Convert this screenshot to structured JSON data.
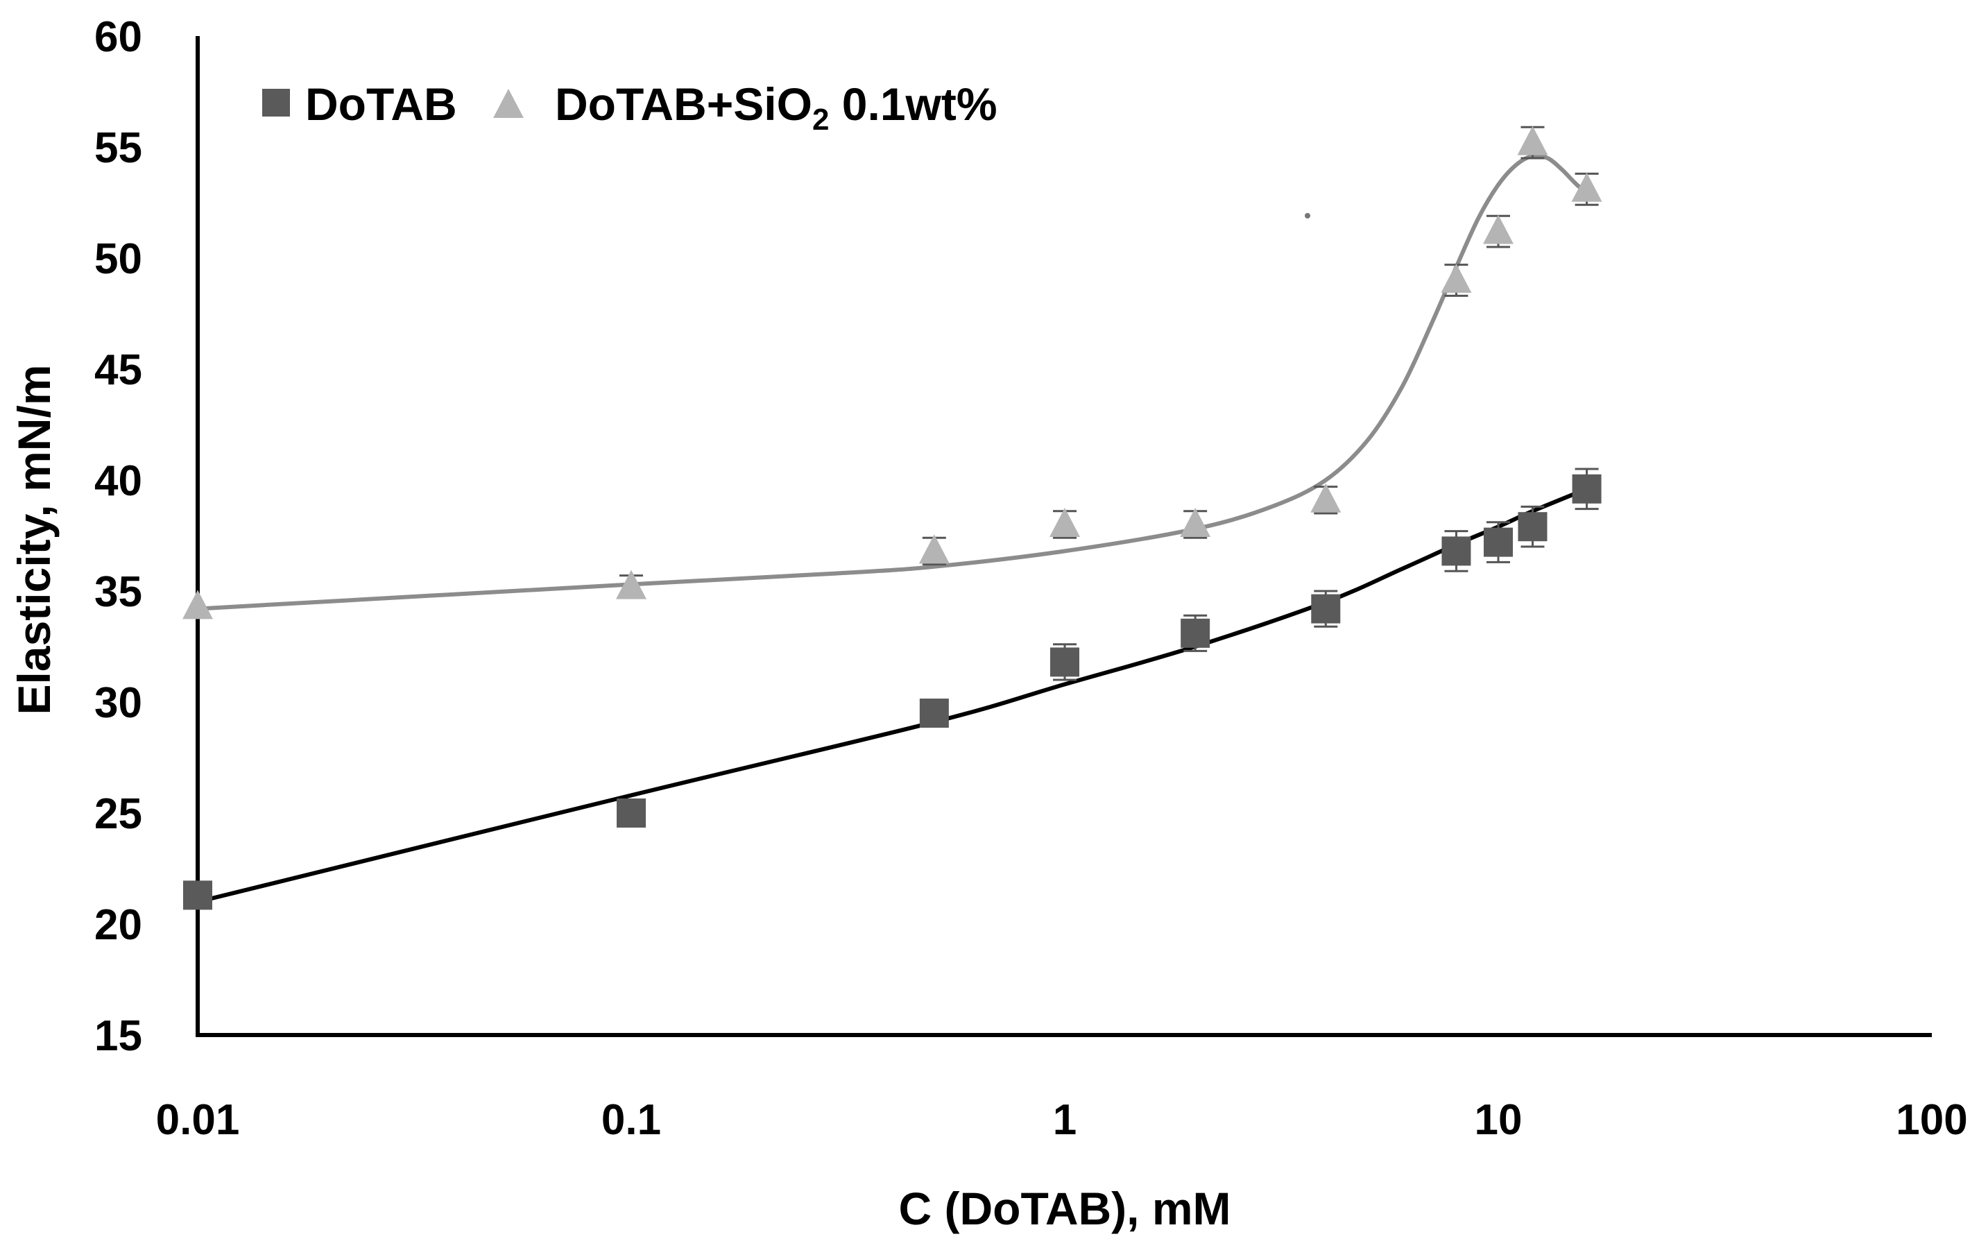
{
  "chart_data": {
    "type": "scatter",
    "title": "",
    "xlabel": "C (DoTAB), mM",
    "ylabel": "Elasticity, mN/m",
    "xscale": "log",
    "xlim": [
      0.01,
      100
    ],
    "ylim": [
      15,
      60
    ],
    "xticks": [
      0.01,
      0.1,
      1,
      10,
      100
    ],
    "xtick_labels": [
      "0.01",
      "0.1",
      "1",
      "10",
      "100"
    ],
    "yticks": [
      15,
      20,
      25,
      30,
      35,
      40,
      45,
      50,
      55,
      60
    ],
    "ytick_labels": [
      "15",
      "20",
      "25",
      "30",
      "35",
      "40",
      "45",
      "50",
      "55",
      "60"
    ],
    "grid": false,
    "legend_position": "top-left",
    "series": [
      {
        "name": "DoTAB",
        "marker": "square",
        "color": "#5a5a5a",
        "trend_color": "#000000",
        "x": [
          0.01,
          0.1,
          0.5,
          1,
          2,
          4,
          8,
          10,
          12,
          16
        ],
        "y": [
          21.3,
          25.0,
          29.5,
          31.8,
          33.1,
          34.2,
          36.8,
          37.2,
          37.9,
          39.6
        ],
        "error": [
          0,
          0,
          0.5,
          0.8,
          0.8,
          0.8,
          0.9,
          0.9,
          0.9,
          0.9
        ],
        "trend": [
          [
            0.01,
            21.0
          ],
          [
            0.1,
            25.8
          ],
          [
            0.5,
            29.1
          ],
          [
            1,
            30.8
          ],
          [
            2,
            32.5
          ],
          [
            4,
            34.5
          ],
          [
            6,
            36.0
          ],
          [
            8,
            37.1
          ],
          [
            10,
            37.9
          ],
          [
            12,
            38.6
          ],
          [
            16,
            39.6
          ]
        ]
      },
      {
        "name_main": "DoTAB+SiO",
        "name_sub": "2",
        "name_tail": " 0.1wt%",
        "marker": "triangle",
        "color": "#b4b4b4",
        "trend_color": "#8c8c8c",
        "x": [
          0.01,
          0.1,
          0.5,
          1,
          2,
          4,
          8,
          10,
          12,
          16
        ],
        "y": [
          34.3,
          35.2,
          36.8,
          38.0,
          38.0,
          39.1,
          49.0,
          51.2,
          55.2,
          53.1
        ],
        "error": [
          0,
          0.5,
          0.6,
          0.6,
          0.6,
          0.6,
          0.7,
          0.7,
          0.7,
          0.7
        ],
        "trend": [
          [
            0.01,
            34.2
          ],
          [
            0.1,
            35.3
          ],
          [
            0.3,
            35.8
          ],
          [
            0.5,
            36.1
          ],
          [
            1,
            36.8
          ],
          [
            2,
            37.8
          ],
          [
            3,
            38.8
          ],
          [
            4,
            40.0
          ],
          [
            5,
            41.8
          ],
          [
            6,
            44.2
          ],
          [
            7,
            47.0
          ],
          [
            8,
            49.6
          ],
          [
            9,
            51.8
          ],
          [
            10,
            53.3
          ],
          [
            11,
            54.2
          ],
          [
            12,
            54.6
          ],
          [
            13,
            54.5
          ],
          [
            14,
            54.0
          ],
          [
            15,
            53.4
          ],
          [
            16,
            52.9
          ]
        ]
      }
    ]
  }
}
